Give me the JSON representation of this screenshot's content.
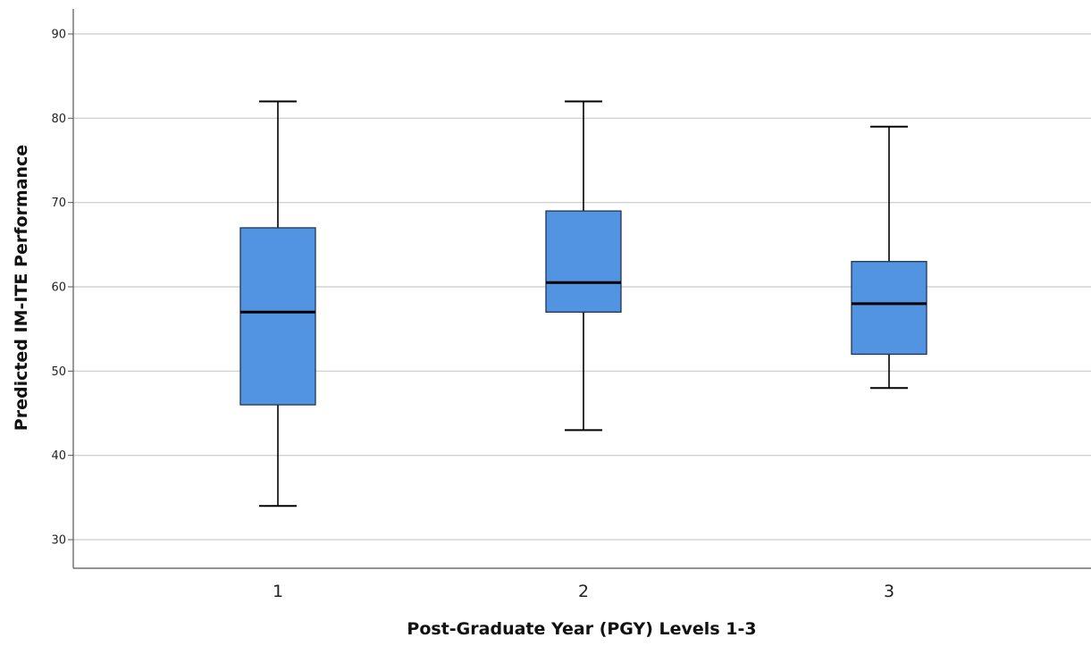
{
  "chart_data": {
    "type": "boxplot",
    "title": "",
    "xlabel": "Post-Graduate Year (PGY) Levels 1-3",
    "ylabel": "Predicted IM-ITE Performance",
    "ylim": [
      27,
      94
    ],
    "yticks": [
      30,
      40,
      50,
      60,
      70,
      80,
      90
    ],
    "grid": true,
    "colors": {
      "box_fill": "#5294e2",
      "box_stroke": "#1f3550",
      "median": "#000000",
      "grid": "#c9c9c9"
    },
    "categories": [
      "1",
      "2",
      "3"
    ],
    "boxes": [
      {
        "category": "1",
        "min": 34,
        "q1": 46,
        "median": 57,
        "q3": 67,
        "max": 82
      },
      {
        "category": "2",
        "min": 43,
        "q1": 57,
        "median": 60.5,
        "q3": 69,
        "max": 82
      },
      {
        "category": "3",
        "min": 48,
        "q1": 52,
        "median": 58,
        "q3": 63,
        "max": 79
      }
    ]
  }
}
